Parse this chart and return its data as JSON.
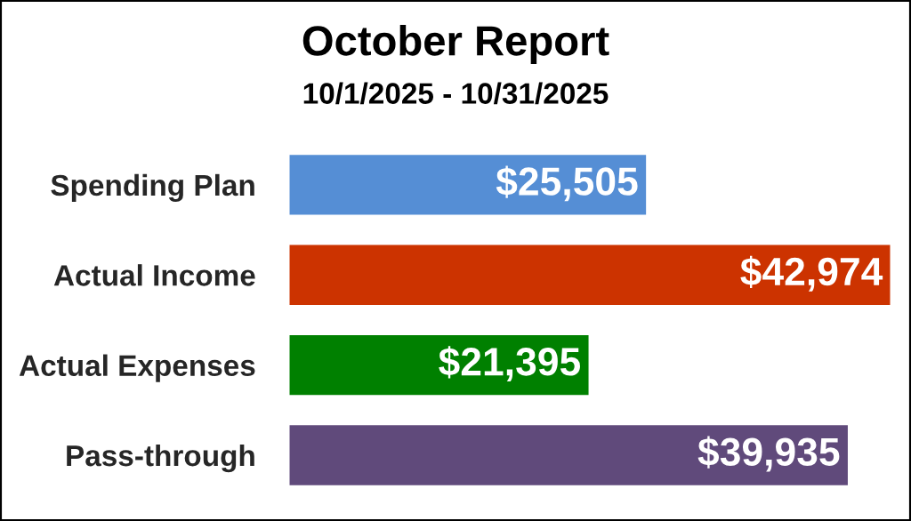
{
  "chart_data": {
    "type": "bar",
    "orientation": "horizontal",
    "title": "October Report",
    "subtitle": "10/1/2025 - 10/31/2025",
    "categories": [
      "Spending Plan",
      "Actual Income",
      "Actual Expenses",
      "Pass-through"
    ],
    "values": [
      25505,
      42974,
      21395,
      39935
    ],
    "colors": [
      "#558ed5",
      "#cc3300",
      "#008000",
      "#604a7b"
    ],
    "value_labels": [
      "$25,505",
      "$42,974",
      "$21,395",
      "$39,935"
    ],
    "tick_labels": "y"
  }
}
